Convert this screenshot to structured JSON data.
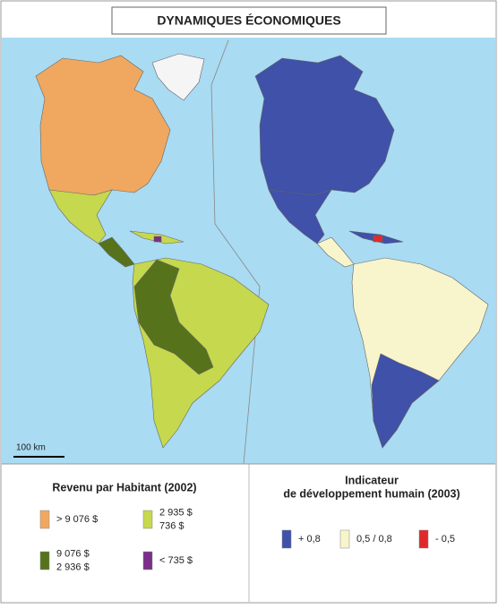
{
  "title": "DYNAMIQUES ÉCONOMIQUES",
  "scale": "100 km",
  "legends": [
    {
      "title_lines": [
        "Revenu par Habitant (2002)"
      ],
      "items": [
        {
          "lines": [
            ">  9 076 $"
          ],
          "color": "#f0a860"
        },
        {
          "lines": [
            "2 935 $",
            "736 $"
          ],
          "color": "#c6d84e"
        },
        {
          "lines": [
            "9 076 $",
            "2 936 $"
          ],
          "color": "#56731b"
        },
        {
          "lines": [
            "<  735 $"
          ],
          "color": "#7b2e8a"
        }
      ]
    },
    {
      "title_lines": [
        "Indicateur",
        "de développement humain (2003)"
      ],
      "items": [
        {
          "lines": [
            "+ 0,8"
          ],
          "color": "#3f51a8"
        },
        {
          "lines": [
            "0,5 / 0,8"
          ],
          "color": "#f8f4cc"
        },
        {
          "lines": [
            "- 0,5"
          ],
          "color": "#e02a2a"
        }
      ]
    }
  ]
}
